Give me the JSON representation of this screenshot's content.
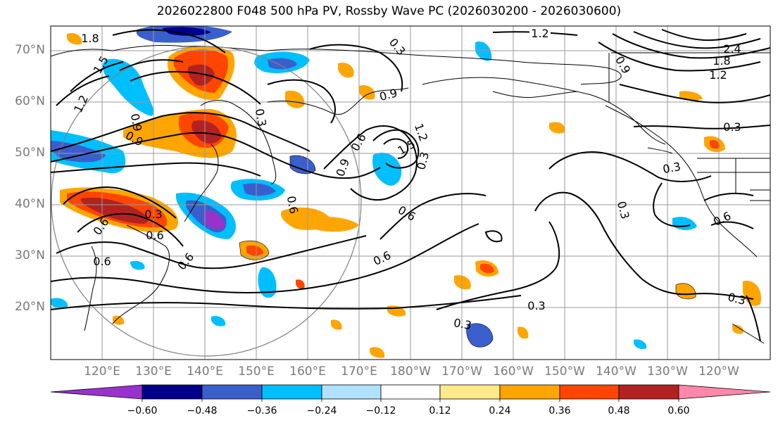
{
  "title": "2026022800 F048 500 hPa PV, Rossby Wave PC (2026030200 - 2026030600)",
  "lat_labels": [
    "70°N",
    "60°N",
    "50°N",
    "40°N",
    "30°N",
    "20°N"
  ],
  "lon_labels": [
    "120°E",
    "130°E",
    "140°E",
    "150°E",
    "160°E",
    "170°E",
    "180°W",
    "170°W",
    "160°W",
    "150°W",
    "140°W",
    "130°W",
    "120°W"
  ],
  "colorbar": {
    "labels": [
      "−0.60",
      "−0.48",
      "−0.36",
      "−0.24",
      "−0.12",
      "0.12",
      "0.24",
      "0.36",
      "0.48",
      "0.60"
    ],
    "colors": [
      "#9932cc",
      "#00008b",
      "#3a5fcd",
      "#00bfff",
      "#b0e2ff",
      "#ffffff",
      "#ffe98a",
      "#ffa500",
      "#ff4500",
      "#b22222",
      "#ff88aa"
    ]
  },
  "pv_contour_labels": [
    "1.2",
    "1.5",
    "1.8",
    "1.2",
    "0.9",
    "0.6",
    "0.3",
    "0.9",
    "0.6",
    "0.3",
    "0.6",
    "0.6",
    "0.6",
    "0.9",
    "0.9",
    "1.2",
    "1.5",
    "0.3",
    "0.6",
    "0.3",
    "0.3",
    "0.3",
    "0.3",
    "0.6",
    "0.6",
    "0.6",
    "0.3",
    "0.9",
    "1.2",
    "1.8",
    "2.4",
    "0.3",
    "0.3"
  ]
}
